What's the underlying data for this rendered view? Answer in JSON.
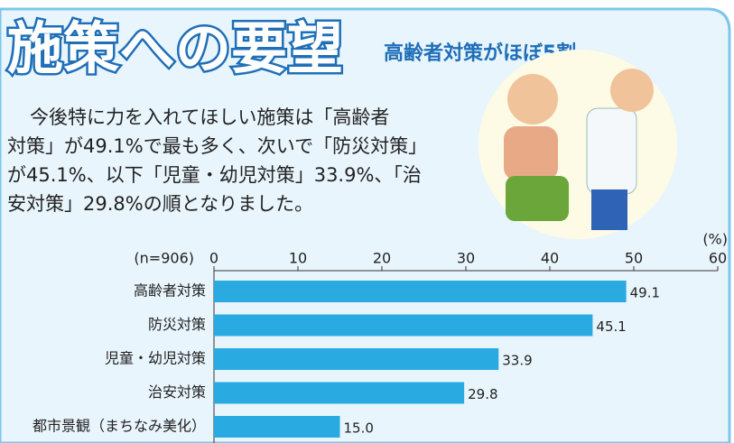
{
  "header": {
    "title": "施策への要望",
    "subtitle": "高齢者対策がほぼ5割",
    "body": [
      "今後特に力を入れてほしい施策は「高齢者",
      "対策」が49.1%で最も多く、次いで「防災対策」",
      "が45.1%、以下「児童・幼児対策」33.9%、「治",
      "安対策」29.8%の順となりました。"
    ]
  },
  "chart_data": {
    "type": "bar",
    "orientation": "horizontal",
    "note": "(n=906)",
    "unit": "(%)",
    "categories": [
      "高齢者対策",
      "防災対策",
      "児童・幼児対策",
      "治安対策",
      "都市景観（まちなみ美化）"
    ],
    "values": [
      49.1,
      45.1,
      33.9,
      29.8,
      15.0
    ],
    "value_labels": [
      "49.1",
      "45.1",
      "33.9",
      "29.8",
      "15.0"
    ],
    "color": "#29abe2",
    "xlim": [
      0,
      60
    ],
    "xticks": [
      0,
      10,
      20,
      30,
      40,
      50,
      60
    ]
  }
}
